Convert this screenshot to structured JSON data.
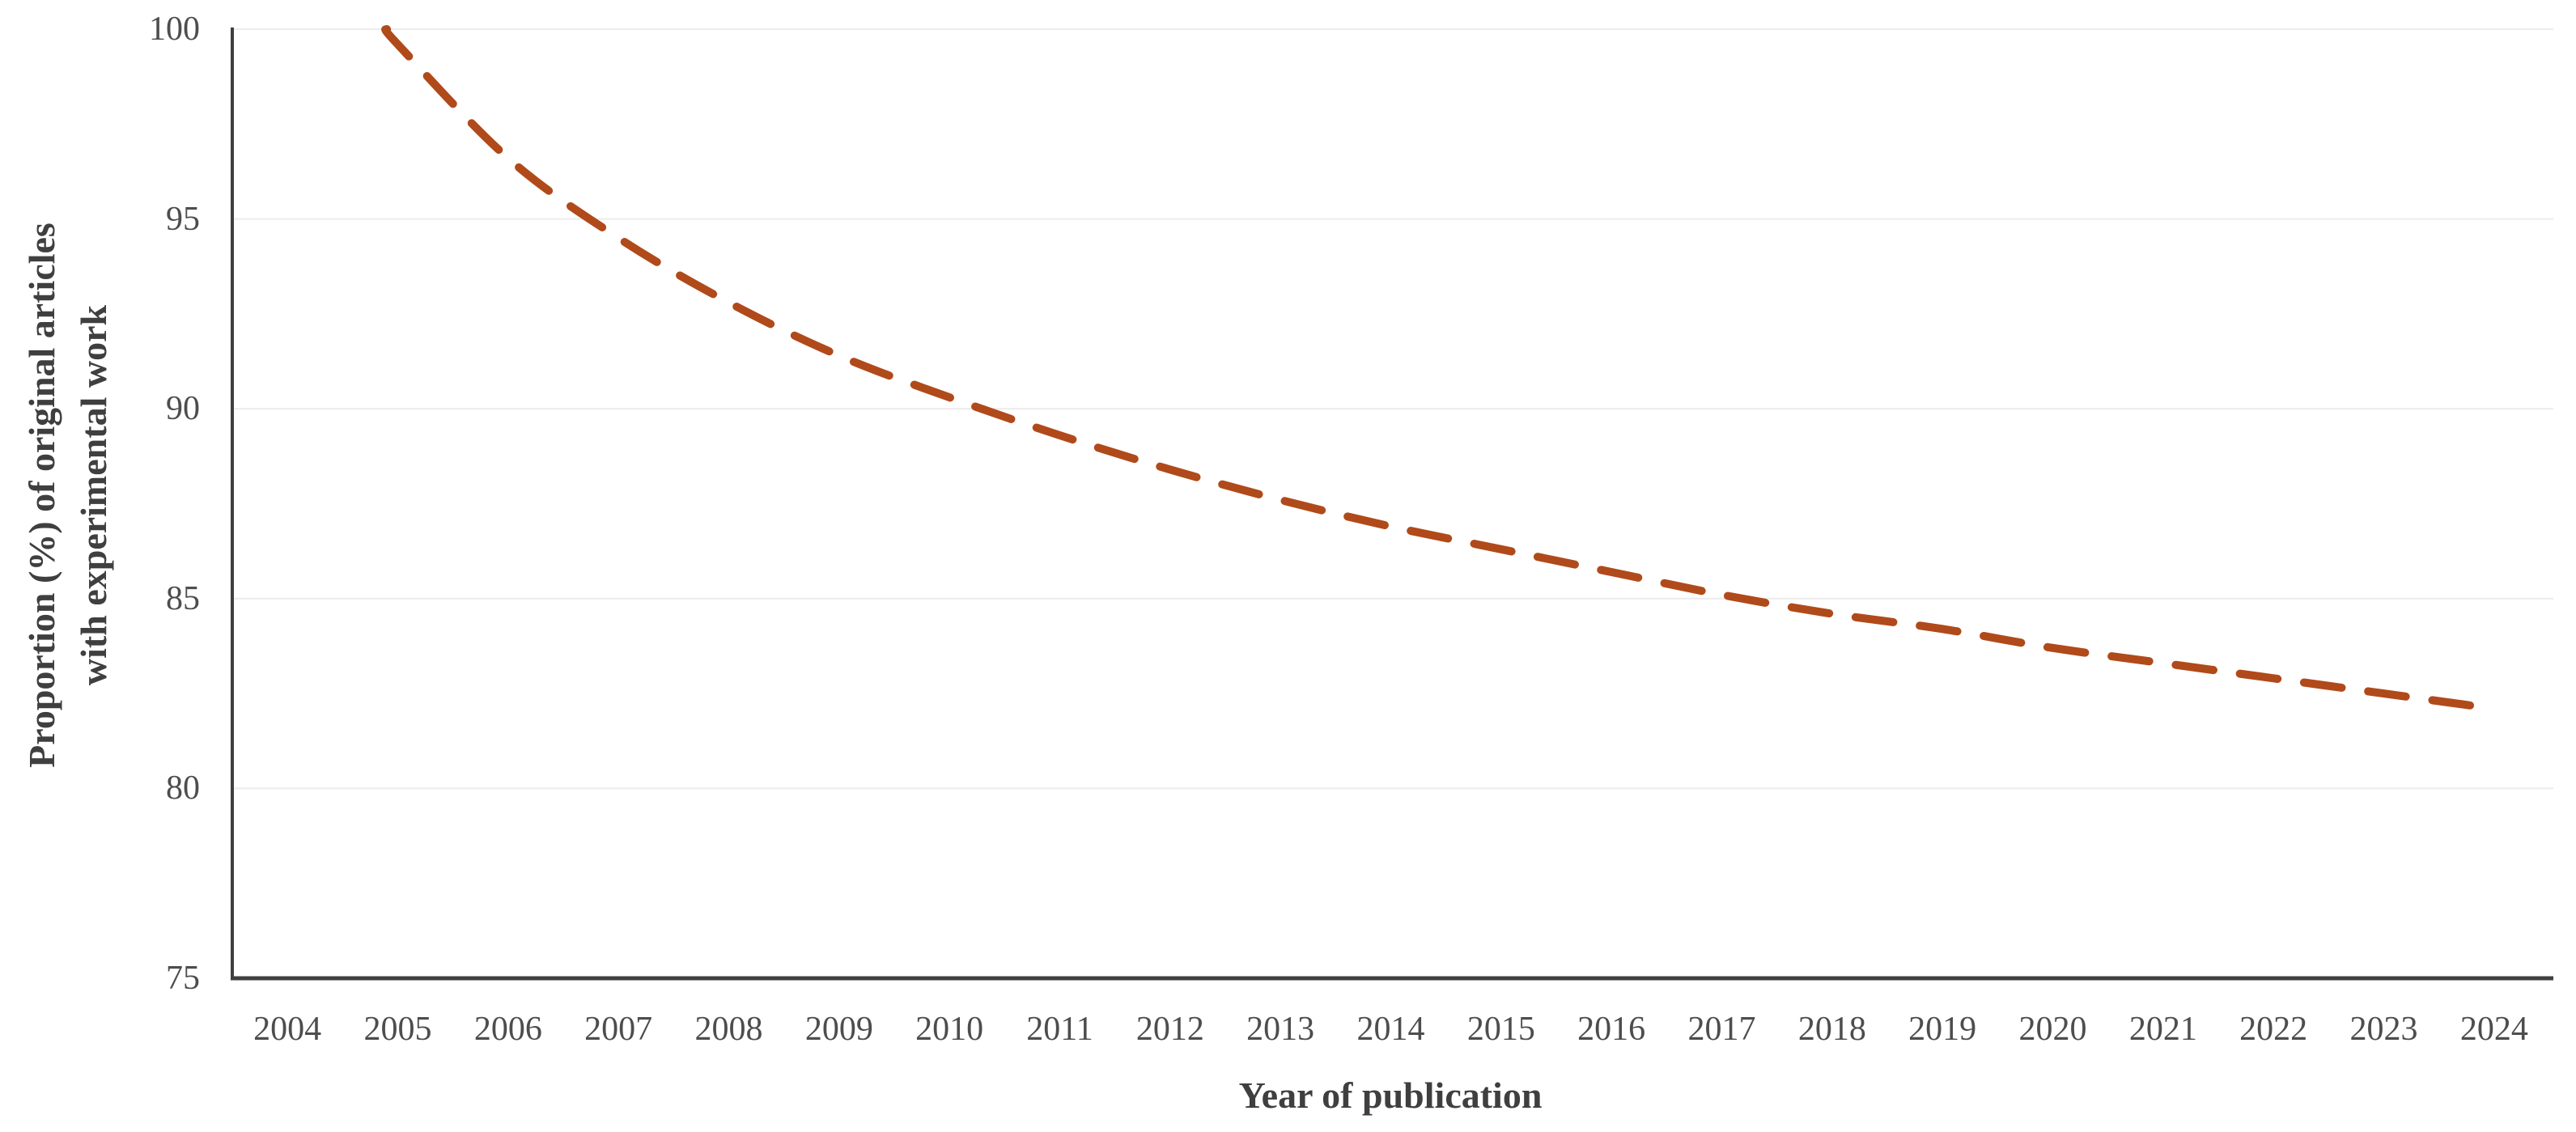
{
  "chart_data": {
    "type": "line",
    "title": "",
    "xlabel": "Year of publication",
    "ylabel": "Proportion (%) of original articles\nwith experimental work",
    "x_ticks": [
      "2004",
      "2005",
      "2006",
      "2007",
      "2008",
      "2009",
      "2010",
      "2011",
      "2012",
      "2013",
      "2014",
      "2015",
      "2016",
      "2017",
      "2018",
      "2019",
      "2020",
      "2021",
      "2022",
      "2023",
      "2024"
    ],
    "y_ticks": [
      100,
      95,
      90,
      85,
      80,
      75
    ],
    "ylim": [
      75,
      100
    ],
    "grid": "horizontal",
    "legend_position": "none",
    "series": [
      {
        "name": "trend",
        "line_style": "dashed",
        "x": [
          2004.9,
          2005,
          2006,
          2007,
          2008,
          2009,
          2010,
          2011,
          2012,
          2013,
          2014,
          2015,
          2016,
          2017,
          2018,
          2019,
          2020,
          2021,
          2022,
          2023,
          2024
        ],
        "y": [
          100,
          99.6,
          96.6,
          94.5,
          92.8,
          91.4,
          90.3,
          89.3,
          88.4,
          87.6,
          86.9,
          86.3,
          85.7,
          85.1,
          84.6,
          84.2,
          83.7,
          83.3,
          82.9,
          82.5,
          82.1
        ]
      }
    ],
    "style": {
      "line_color": "#b04a1a",
      "grid_color": "#ececec",
      "axis_color": "#3f3f3f",
      "text_color": "#4d4d4d"
    }
  }
}
